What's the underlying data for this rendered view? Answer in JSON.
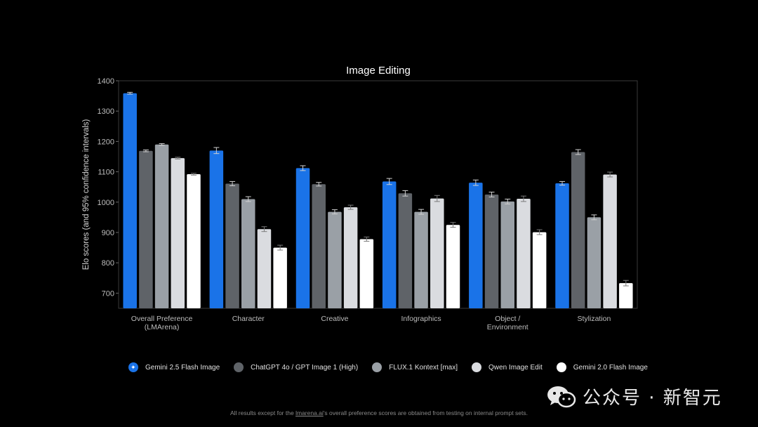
{
  "chart_data": {
    "type": "bar",
    "title": "Image Editing",
    "ylabel": "Elo scores (and 95% confidence intervals)",
    "xlabel": "",
    "ylim": [
      650,
      1400
    ],
    "yticks": [
      700,
      800,
      900,
      1000,
      1100,
      1200,
      1300,
      1400
    ],
    "grid": false,
    "legend_position": "bottom",
    "categories": [
      [
        "Overall Preference",
        "(LMArena)"
      ],
      [
        "Character"
      ],
      [
        "Creative"
      ],
      [
        "Infographics"
      ],
      [
        "Object /",
        "Environment"
      ],
      [
        "Stylization"
      ]
    ],
    "series": [
      {
        "name": "Gemini 2.5 Flash Image",
        "color": "#1a73e8",
        "values": [
          1359,
          1170,
          1112,
          1068,
          1064,
          1062
        ],
        "ci": [
          3,
          10,
          8,
          10,
          9,
          6
        ]
      },
      {
        "name": "ChatGPT 4o / GPT Image 1 (High)",
        "color": "#5f6368",
        "values": [
          1169,
          1061,
          1059,
          1029,
          1025,
          1165
        ],
        "ci": [
          3,
          7,
          6,
          9,
          8,
          8
        ]
      },
      {
        "name": "FLUX.1 Kontext [max]",
        "color": "#9aa0a6",
        "values": [
          1190,
          1010,
          968,
          968,
          1002,
          950
        ],
        "ci": [
          3,
          8,
          7,
          8,
          8,
          8
        ]
      },
      {
        "name": "Qwen Image Edit",
        "color": "#dadce0",
        "values": [
          1145,
          911,
          983,
          1012,
          1011,
          1091
        ],
        "ci": [
          3,
          8,
          7,
          10,
          9,
          8
        ]
      },
      {
        "name": "Gemini 2.0 Flash Image",
        "color": "#ffffff",
        "values": [
          1092,
          850,
          878,
          925,
          901,
          733
        ],
        "ci": [
          3,
          8,
          7,
          8,
          8,
          9
        ]
      }
    ]
  },
  "legend_marker_icon": "sparkle-icon",
  "watermark": {
    "icon": "wechat-icon",
    "text": "公众号 · 新智元"
  },
  "footnote": {
    "before": "All results except for the ",
    "link": "lmarena.ai",
    "after": "'s overall preference scores are obtained from testing on internal prompt sets."
  }
}
